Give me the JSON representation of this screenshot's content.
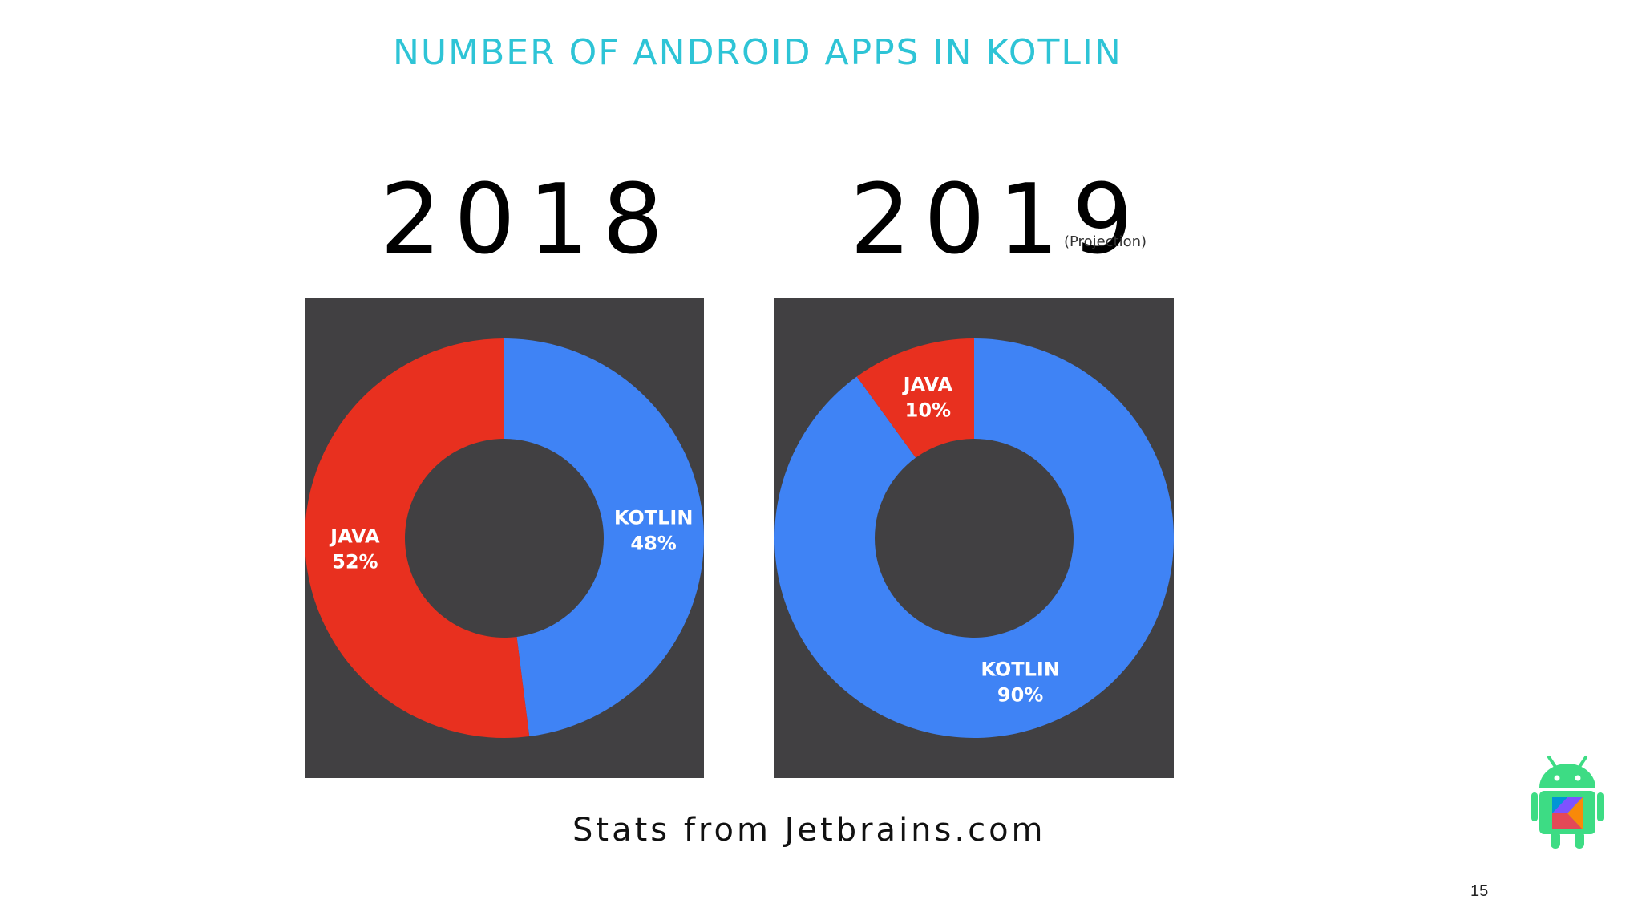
{
  "slide": {
    "title": "NUMBER OF ANDROID APPS IN KOTLIN",
    "source": "Stats from Jetbrains.com",
    "page_number": "15"
  },
  "colors": {
    "java": "#e8301f",
    "kotlin": "#3f83f5",
    "panel": "#414042",
    "title": "#2ec4d6"
  },
  "chart_data": [
    {
      "type": "pie",
      "title": "2018",
      "subtitle": "",
      "slices": [
        {
          "label": "KOTLIN",
          "value": 48,
          "value_text": "48%",
          "color": "#3f83f5"
        },
        {
          "label": "JAVA",
          "value": 52,
          "value_text": "52%",
          "color": "#e8301f"
        }
      ]
    },
    {
      "type": "pie",
      "title": "2019",
      "subtitle": "(Projection)",
      "slices": [
        {
          "label": "KOTLIN",
          "value": 90,
          "value_text": "90%",
          "color": "#3f83f5"
        },
        {
          "label": "JAVA",
          "value": 10,
          "value_text": "10%",
          "color": "#e8301f"
        }
      ]
    }
  ],
  "logo_icon": "android-kotlin-logo-icon"
}
